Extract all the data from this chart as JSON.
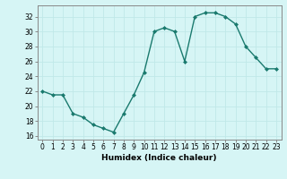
{
  "x": [
    0,
    1,
    2,
    3,
    4,
    5,
    6,
    7,
    8,
    9,
    10,
    11,
    12,
    13,
    14,
    15,
    16,
    17,
    18,
    19,
    20,
    21,
    22,
    23
  ],
  "y": [
    22.0,
    21.5,
    21.5,
    19.0,
    18.5,
    17.5,
    17.0,
    16.5,
    19.0,
    21.5,
    24.5,
    30.0,
    30.5,
    30.0,
    26.0,
    32.0,
    32.5,
    32.5,
    32.0,
    31.0,
    28.0,
    26.5,
    25.0,
    25.0
  ],
  "line_color": "#1a7a6e",
  "marker": "D",
  "marker_size": 2.0,
  "bg_color": "#d6f5f5",
  "grid_color": "#c0e8e8",
  "xlabel": "Humidex (Indice chaleur)",
  "ylim": [
    15.5,
    33.5
  ],
  "xlim": [
    -0.5,
    23.5
  ],
  "yticks": [
    16,
    18,
    20,
    22,
    24,
    26,
    28,
    30,
    32
  ],
  "xticks": [
    0,
    1,
    2,
    3,
    4,
    5,
    6,
    7,
    8,
    9,
    10,
    11,
    12,
    13,
    14,
    15,
    16,
    17,
    18,
    19,
    20,
    21,
    22,
    23
  ],
  "xlabel_fontsize": 6.5,
  "tick_fontsize": 5.5,
  "line_width": 1.0,
  "spine_color": "#888888"
}
